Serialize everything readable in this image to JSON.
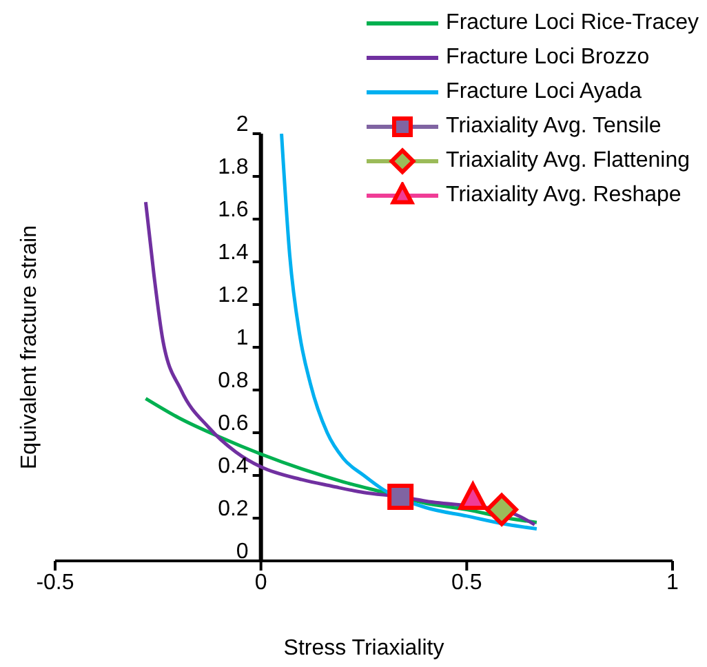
{
  "chart_data": {
    "type": "line",
    "xlabel": "Stress Triaxiality",
    "ylabel": "Equivalent fracture strain",
    "xlim": [
      -0.5,
      1
    ],
    "xticks": [
      -0.5,
      0,
      0.5,
      1
    ],
    "ylim": [
      0,
      2
    ],
    "yticks": [
      0,
      0.2,
      0.4,
      0.6,
      0.8,
      1,
      1.2,
      1.4,
      1.6,
      1.8,
      2
    ],
    "grid": false,
    "legend": "top right",
    "marker": "none",
    "series": [
      {
        "name": "Fracture Loci Rice-Tracey",
        "color": "#00b050",
        "x": [
          -0.28,
          -0.2,
          -0.1,
          0,
          0.1,
          0.2,
          0.3,
          0.4,
          0.5,
          0.6,
          0.67
        ],
        "values": [
          0.76,
          0.67,
          0.58,
          0.5,
          0.43,
          0.37,
          0.32,
          0.27,
          0.24,
          0.2,
          0.18
        ]
      },
      {
        "name": "Fracture Loci Brozzo",
        "color": "#7030a0",
        "x": [
          -0.28,
          -0.26,
          -0.238,
          -0.194,
          -0.127,
          -0.061,
          0,
          0.1,
          0.172,
          0.25,
          0.339,
          0.4,
          0.6,
          0.665
        ],
        "values": [
          1.68,
          1.34,
          1.03,
          0.8,
          0.625,
          0.51,
          0.44,
          0.38,
          0.35,
          0.32,
          0.3,
          0.28,
          0.23,
          0.17
        ]
      },
      {
        "name": "Fracture Loci Ayada",
        "color": "#00b0f0",
        "x": [
          0.05,
          0.07,
          0.094,
          0.12,
          0.161,
          0.2,
          0.25,
          0.3,
          0.4,
          0.5,
          0.6,
          0.67
        ],
        "values": [
          2,
          1.43,
          1.06,
          0.83,
          0.6,
          0.48,
          0.4,
          0.33,
          0.25,
          0.21,
          0.17,
          0.15
        ]
      },
      {
        "name": "Triaxiality Avg. Tensile",
        "type": "scatter",
        "marker": "square",
        "color": "#8064a2",
        "x": [
          0.339
        ],
        "values": [
          0.3
        ]
      },
      {
        "name": "Triaxiality Avg. Flattening",
        "type": "scatter",
        "marker": "diamond",
        "color": "#9bbb59",
        "x": [
          0.585
        ],
        "values": [
          0.24
        ]
      },
      {
        "name": "Triaxiality Avg. Reshape",
        "type": "scatter",
        "marker": "triangle",
        "color": "#f03c96",
        "x": [
          0.515
        ],
        "values": [
          0.29
        ]
      }
    ]
  }
}
